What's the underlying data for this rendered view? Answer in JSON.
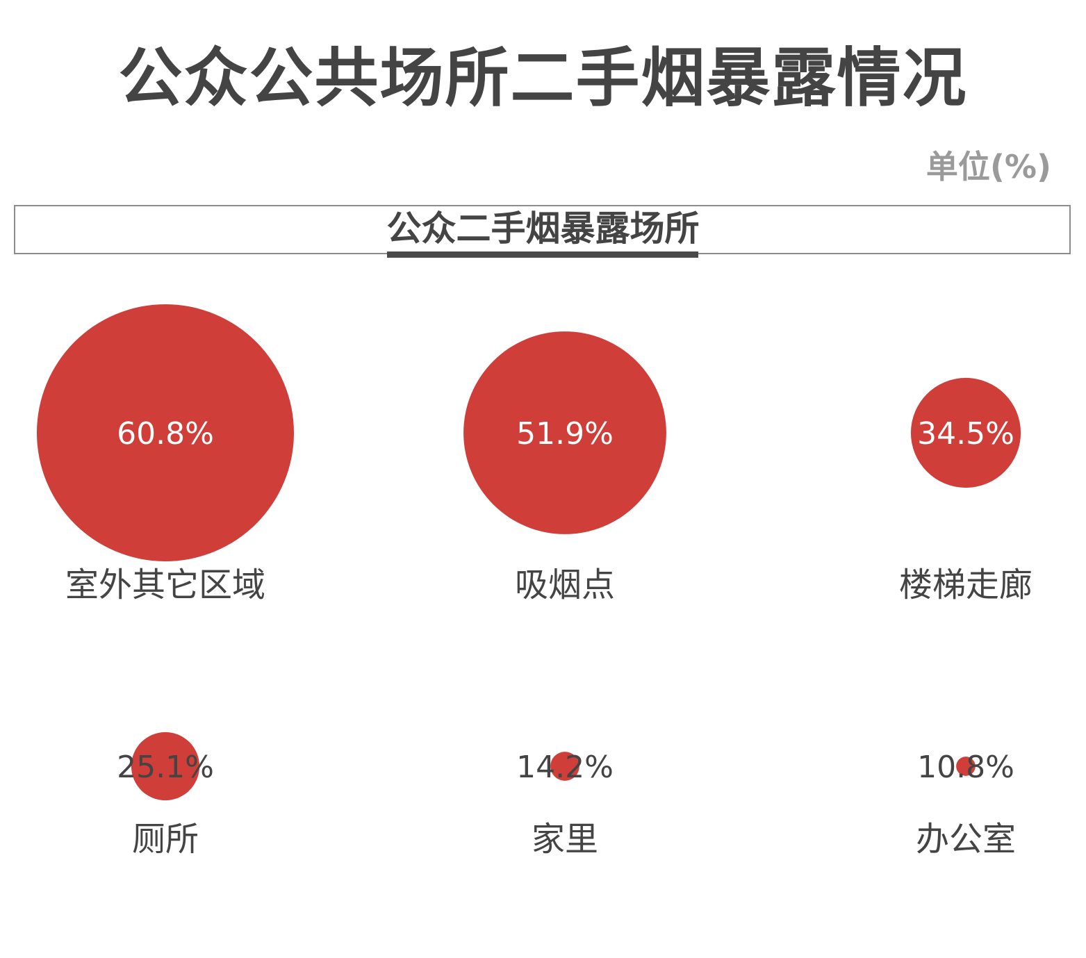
{
  "title": "公众公共场所二手烟暴露情况",
  "unit": "单位(%)",
  "section_title": "公众二手烟暴露场所",
  "colors": {
    "bubble": "#cf3e38",
    "text_dark": "#444444",
    "text_light": "#ffffff",
    "unit_gray": "#9a9a9a"
  },
  "chart_data": {
    "type": "bubble",
    "unit": "%",
    "categories": [
      "室外其它区域",
      "吸烟点",
      "楼梯走廊",
      "厕所",
      "家里",
      "办公室"
    ],
    "values": [
      60.8,
      51.9,
      34.5,
      25.1,
      14.2,
      10.8
    ],
    "value_labels": [
      "60.8%",
      "51.9%",
      "34.5%",
      "25.1%",
      "14.2%",
      "10.8%"
    ]
  }
}
